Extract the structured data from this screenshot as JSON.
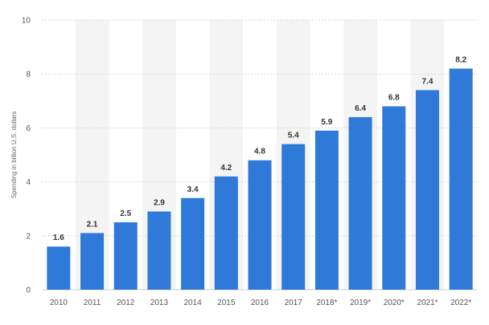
{
  "chart_data": {
    "type": "bar",
    "title": "",
    "xlabel": "",
    "ylabel": "Spending in billion U.S. dollars",
    "categories": [
      "2010",
      "2011",
      "2012",
      "2013",
      "2014",
      "2015",
      "2016",
      "2017",
      "2018*",
      "2019*",
      "2020*",
      "2021*",
      "2022*"
    ],
    "values": [
      1.6,
      2.1,
      2.5,
      2.9,
      3.4,
      4.2,
      4.8,
      5.4,
      5.9,
      6.4,
      6.8,
      7.4,
      8.2
    ],
    "data_labels": [
      "1.6",
      "2.1",
      "2.5",
      "2.9",
      "3.4",
      "4.2",
      "4.8",
      "5.4",
      "5.9",
      "6.4",
      "6.8",
      "7.4",
      "8.2"
    ],
    "yticks": [
      "0",
      "2",
      "4",
      "6",
      "8",
      "10"
    ],
    "ylim": [
      0,
      10
    ],
    "grid": true,
    "colors": {
      "bar": "#2f7ad8",
      "band": "#f4f4f4",
      "gridline": "#d6d6d6",
      "axis": "#cccccc"
    }
  }
}
